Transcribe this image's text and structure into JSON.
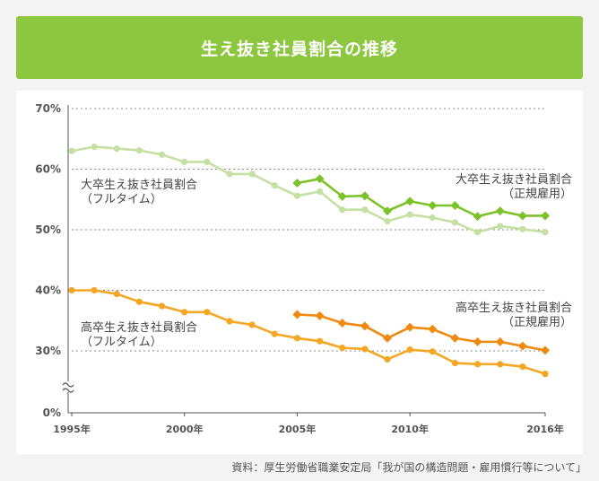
{
  "title": "生え抜き社員割合の推移",
  "source": "資料：厚生労働省職業安定局「我が国の構造問題・雇用慣行等について」",
  "colors": {
    "university": "#7cc22a",
    "university_light": "#c6e0a3",
    "highschool": "#f0890f",
    "highschool_light": "#f5a623",
    "grid": "#888888",
    "axis": "#555555",
    "label": "#444444"
  },
  "chart_data": {
    "type": "line",
    "title": "生え抜き社員割合の推移",
    "xlabel": "",
    "ylabel": "",
    "xlim": [
      1995,
      2016
    ],
    "ylim": [
      0,
      70
    ],
    "axis_break": true,
    "grid": true,
    "y_ticks": [
      "0%",
      "30%",
      "40%",
      "50%",
      "60%",
      "70%"
    ],
    "x_ticks": [
      "1995年",
      "2000年",
      "2005年",
      "2010年",
      "2016年"
    ],
    "series": [
      {
        "name": "大卒生え抜き社員割合（フルタイム）",
        "label_lines": [
          "大卒生え抜き社員割合",
          "（フルタイム）"
        ],
        "color": "#c6e0a3",
        "marker": "circle",
        "x": [
          1995,
          1996,
          1997,
          1998,
          1999,
          2000,
          2001,
          2002,
          2003,
          2004,
          2005,
          2006,
          2007,
          2008,
          2009,
          2010,
          2011,
          2012,
          2013,
          2014,
          2015,
          2016
        ],
        "values": [
          63.0,
          63.7,
          63.4,
          63.1,
          62.4,
          61.2,
          61.2,
          59.2,
          59.2,
          57.3,
          55.6,
          56.3,
          53.3,
          53.3,
          51.4,
          52.5,
          52.0,
          51.2,
          49.6,
          50.6,
          50.1,
          49.6
        ]
      },
      {
        "name": "大卒生え抜き社員割合（正規雇用）",
        "label_lines": [
          "大卒生え抜き社員割合",
          "（正規雇用）"
        ],
        "color": "#7cc22a",
        "marker": "diamond",
        "x": [
          2005,
          2006,
          2007,
          2008,
          2009,
          2010,
          2011,
          2012,
          2013,
          2014,
          2015,
          2016
        ],
        "values": [
          57.7,
          58.4,
          55.5,
          55.6,
          53.1,
          54.7,
          54.0,
          54.0,
          52.2,
          53.1,
          52.3,
          52.3
        ]
      },
      {
        "name": "高卒生え抜き社員割合（フルタイム）",
        "label_lines": [
          "高卒生え抜き社員割合",
          "（フルタイム）"
        ],
        "color": "#f5a623",
        "marker": "circle",
        "x": [
          1995,
          1996,
          1997,
          1998,
          1999,
          2000,
          2001,
          2002,
          2003,
          2004,
          2005,
          2006,
          2007,
          2008,
          2009,
          2010,
          2011,
          2012,
          2013,
          2014,
          2015,
          2016
        ],
        "values": [
          40.0,
          40.0,
          39.4,
          38.1,
          37.4,
          36.4,
          36.4,
          34.9,
          34.3,
          32.8,
          32.1,
          31.6,
          30.5,
          30.3,
          28.6,
          30.2,
          29.9,
          28.0,
          27.8,
          27.8,
          27.4,
          26.2
        ]
      },
      {
        "name": "高卒生え抜き社員割合（正規雇用）",
        "label_lines": [
          "高卒生え抜き社員割合",
          "（正規雇用）"
        ],
        "color": "#f0890f",
        "marker": "diamond",
        "x": [
          2005,
          2006,
          2007,
          2008,
          2009,
          2010,
          2011,
          2012,
          2013,
          2014,
          2015,
          2016
        ],
        "values": [
          36.0,
          35.8,
          34.6,
          34.1,
          32.1,
          33.9,
          33.6,
          32.1,
          31.5,
          31.5,
          30.8,
          30.1
        ]
      }
    ]
  }
}
